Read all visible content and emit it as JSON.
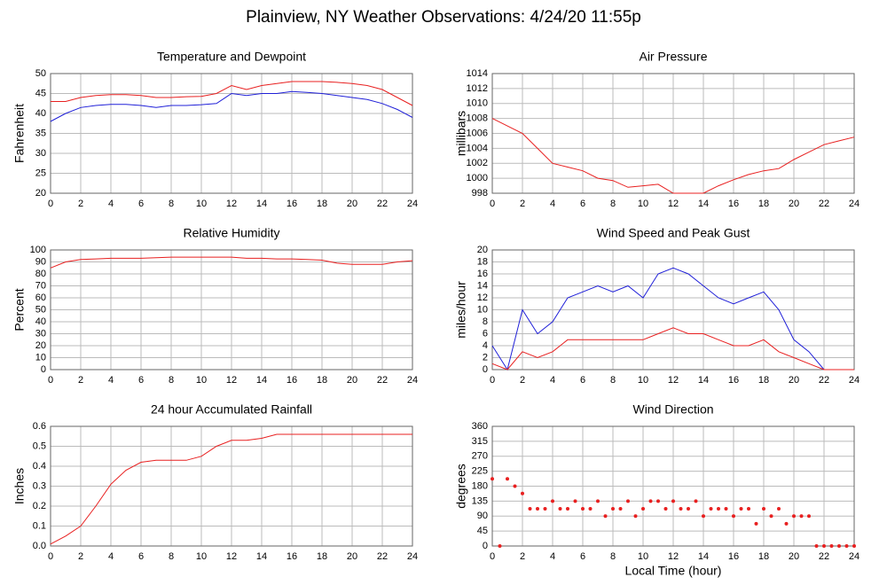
{
  "title": "Plainview, NY Weather Observations: 4/24/20 11:55p",
  "chart_data": [
    {
      "type": "line",
      "title": "Temperature and Dewpoint",
      "ylabel": "Fahrenheit",
      "x": [
        0,
        1,
        2,
        3,
        4,
        5,
        6,
        7,
        8,
        9,
        10,
        11,
        12,
        13,
        14,
        15,
        16,
        17,
        18,
        19,
        20,
        21,
        22,
        23,
        24
      ],
      "series": [
        {
          "color": "#e82020",
          "values": [
            43,
            43,
            44,
            44.5,
            44.7,
            44.7,
            44.5,
            44,
            44,
            44.2,
            44.3,
            45,
            47,
            46,
            47,
            47.5,
            48,
            48,
            48,
            47.8,
            47.5,
            47,
            46,
            44,
            42
          ]
        },
        {
          "color": "#2020d8",
          "values": [
            38,
            40,
            41.5,
            42,
            42.3,
            42.3,
            42,
            41.5,
            42,
            42,
            42.2,
            42.5,
            45,
            44.5,
            45,
            45,
            45.5,
            45.3,
            45,
            44.5,
            44,
            43.5,
            42.5,
            41,
            39
          ]
        }
      ],
      "xlim": [
        0,
        24
      ],
      "xticks": [
        0,
        2,
        4,
        6,
        8,
        10,
        12,
        14,
        16,
        18,
        20,
        22,
        24
      ],
      "ylim": [
        20,
        50
      ],
      "yticks": [
        20,
        25,
        30,
        35,
        40,
        45,
        50
      ],
      "grid": true
    },
    {
      "type": "line",
      "title": "Air Pressure",
      "ylabel": "millibars",
      "x": [
        0,
        1,
        2,
        3,
        4,
        5,
        6,
        7,
        8,
        9,
        10,
        11,
        12,
        13,
        14,
        15,
        16,
        17,
        18,
        19,
        20,
        21,
        22,
        23,
        24
      ],
      "series": [
        {
          "color": "#e82020",
          "values": [
            1008,
            1007,
            1006,
            1004,
            1002,
            1001.5,
            1001,
            1000,
            999.7,
            998.8,
            999,
            999.2,
            998,
            998,
            998,
            999,
            999.8,
            1000.5,
            1001,
            1001.3,
            1002.5,
            1003.5,
            1004.5,
            1005,
            1005.5
          ]
        }
      ],
      "xlim": [
        0,
        24
      ],
      "xticks": [
        0,
        2,
        4,
        6,
        8,
        10,
        12,
        14,
        16,
        18,
        20,
        22,
        24
      ],
      "ylim": [
        998,
        1014
      ],
      "yticks": [
        998,
        1000,
        1002,
        1004,
        1006,
        1008,
        1010,
        1012,
        1014
      ],
      "grid": true
    },
    {
      "type": "line",
      "title": "Relative Humidity",
      "ylabel": "Percent",
      "x": [
        0,
        1,
        2,
        3,
        4,
        5,
        6,
        7,
        8,
        9,
        10,
        11,
        12,
        13,
        14,
        15,
        16,
        17,
        18,
        19,
        20,
        21,
        22,
        23,
        24
      ],
      "series": [
        {
          "color": "#e82020",
          "values": [
            85,
            90,
            92,
            92.5,
            93,
            93,
            93,
            93.5,
            94,
            94,
            94,
            94,
            94,
            93,
            93,
            92.5,
            92.5,
            92,
            91.5,
            89,
            88,
            88,
            88,
            90,
            91
          ]
        }
      ],
      "xlim": [
        0,
        24
      ],
      "xticks": [
        0,
        2,
        4,
        6,
        8,
        10,
        12,
        14,
        16,
        18,
        20,
        22,
        24
      ],
      "ylim": [
        0,
        100
      ],
      "yticks": [
        0,
        10,
        20,
        30,
        40,
        50,
        60,
        70,
        80,
        90,
        100
      ],
      "grid": true
    },
    {
      "type": "line",
      "title": "Wind Speed and Peak Gust",
      "ylabel": "miles/hour",
      "x": [
        0,
        1,
        2,
        3,
        4,
        5,
        6,
        7,
        8,
        9,
        10,
        11,
        12,
        13,
        14,
        15,
        16,
        17,
        18,
        19,
        20,
        21,
        22,
        23,
        24
      ],
      "series": [
        {
          "color": "#2020d8",
          "values": [
            4,
            0,
            10,
            6,
            8,
            12,
            13,
            14,
            13,
            14,
            12,
            16,
            17,
            16,
            14,
            12,
            11,
            12,
            13,
            10,
            5,
            3,
            0,
            0,
            0
          ]
        },
        {
          "color": "#e82020",
          "values": [
            1,
            0,
            3,
            2,
            3,
            5,
            5,
            5,
            5,
            5,
            5,
            6,
            7,
            6,
            6,
            5,
            4,
            4,
            5,
            3,
            2,
            1,
            0,
            0,
            0
          ]
        }
      ],
      "xlim": [
        0,
        24
      ],
      "xticks": [
        0,
        2,
        4,
        6,
        8,
        10,
        12,
        14,
        16,
        18,
        20,
        22,
        24
      ],
      "ylim": [
        0,
        20
      ],
      "yticks": [
        0,
        2,
        4,
        6,
        8,
        10,
        12,
        14,
        16,
        18,
        20
      ],
      "grid": true
    },
    {
      "type": "line",
      "title": "24 hour Accumulated Rainfall",
      "ylabel": "Inches",
      "x": [
        0,
        1,
        2,
        3,
        4,
        5,
        6,
        7,
        8,
        9,
        10,
        11,
        12,
        13,
        14,
        15,
        16,
        17,
        18,
        19,
        20,
        21,
        22,
        23,
        24
      ],
      "series": [
        {
          "color": "#e82020",
          "values": [
            0.01,
            0.05,
            0.1,
            0.2,
            0.31,
            0.38,
            0.42,
            0.43,
            0.43,
            0.43,
            0.45,
            0.5,
            0.53,
            0.53,
            0.54,
            0.56,
            0.56,
            0.56,
            0.56,
            0.56,
            0.56,
            0.56,
            0.56,
            0.56,
            0.56
          ]
        }
      ],
      "xlim": [
        0,
        24
      ],
      "xticks": [
        0,
        2,
        4,
        6,
        8,
        10,
        12,
        14,
        16,
        18,
        20,
        22,
        24
      ],
      "ylim": [
        0,
        0.6
      ],
      "yticks": [
        {
          "value": 0,
          "label": "0.0"
        },
        0.1,
        0.2,
        0.3,
        0.4,
        0.5,
        0.6
      ],
      "grid": true
    },
    {
      "type": "scatter",
      "title": "Wind Direction",
      "ylabel": "degrees",
      "xlabel": "Local Time (hour)",
      "x": [
        0,
        0.5,
        1,
        1.5,
        2,
        2.5,
        3,
        3.5,
        4,
        4.5,
        5,
        5.5,
        6,
        6.5,
        7,
        7.5,
        8,
        8.5,
        9,
        9.5,
        10,
        10.5,
        11,
        11.5,
        12,
        12.5,
        13,
        13.5,
        14,
        14.5,
        15,
        15.5,
        16,
        16.5,
        17,
        17.5,
        18,
        18.5,
        19,
        19.5,
        20,
        20.5,
        21,
        21.5,
        22,
        22.5,
        23,
        23.5,
        24
      ],
      "series": [
        {
          "color": "#e82020",
          "values": [
            202,
            0,
            202,
            180,
            158,
            112,
            112,
            112,
            135,
            112,
            112,
            135,
            112,
            112,
            135,
            90,
            112,
            112,
            135,
            90,
            112,
            135,
            135,
            112,
            135,
            112,
            112,
            135,
            90,
            112,
            112,
            112,
            90,
            112,
            112,
            67,
            112,
            90,
            112,
            67,
            90,
            90,
            90,
            0,
            0,
            0,
            0,
            0,
            0
          ]
        }
      ],
      "xlim": [
        0,
        24
      ],
      "xticks": [
        0,
        2,
        4,
        6,
        8,
        10,
        12,
        14,
        16,
        18,
        20,
        22,
        24
      ],
      "ylim": [
        0,
        360
      ],
      "yticks": [
        0,
        45,
        90,
        135,
        180,
        225,
        270,
        315,
        360
      ],
      "grid": true
    }
  ]
}
